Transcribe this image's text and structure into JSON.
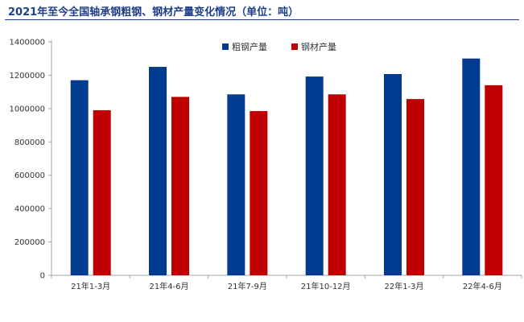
{
  "title": "2021年至今全国轴承钢粗钢、钢材产量变化情况（单位：吨）",
  "colors": {
    "series0": "#003b8f",
    "series1": "#c00000",
    "axis": "#a6a6a6",
    "title": "#1f3f88"
  },
  "chart_data": {
    "type": "bar",
    "title": "2021年至今全国轴承钢粗钢、钢材产量变化情况（单位：吨）",
    "categories": [
      "21年1-3月",
      "21年4-6月",
      "21年7-9月",
      "21年10-12月",
      "22年1-3月",
      "22年4-6月"
    ],
    "series": [
      {
        "name": "粗钢产量",
        "values": [
          1170000,
          1250000,
          1085000,
          1192000,
          1207000,
          1300000
        ]
      },
      {
        "name": "钢材产量",
        "values": [
          990000,
          1070000,
          985000,
          1085000,
          1057000,
          1140000
        ]
      }
    ],
    "ylim": [
      0,
      1400000
    ],
    "yticks": [
      0,
      200000,
      400000,
      600000,
      800000,
      1000000,
      1200000,
      1400000
    ],
    "grid": false,
    "legend": "top-right",
    "xlabel": "",
    "ylabel": ""
  }
}
